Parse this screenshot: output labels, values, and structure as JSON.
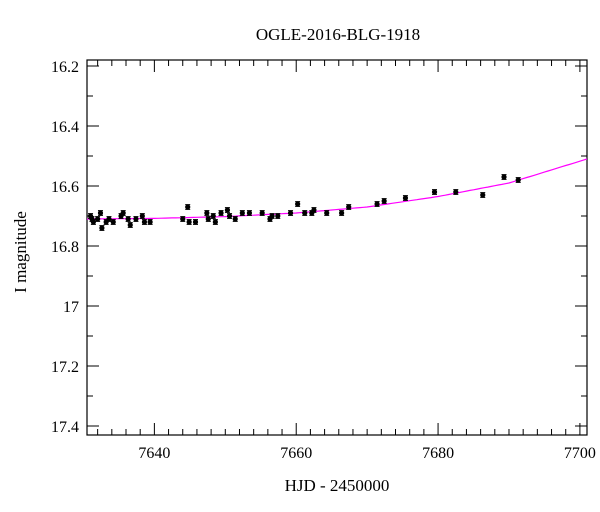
{
  "chart_data": {
    "type": "scatter",
    "title": "OGLE-2016-BLG-1918",
    "xlabel": "HJD - 2450000",
    "ylabel": "I magnitude",
    "xlim": [
      7630.5,
      7701
    ],
    "ylim": [
      17.43,
      16.18
    ],
    "y_inverted": true,
    "x_ticks": [
      7640,
      7660,
      7680,
      7700
    ],
    "x_tick_labels": [
      "7640",
      "7660",
      "7680",
      "7700"
    ],
    "y_ticks": [
      16.2,
      16.4,
      16.6,
      16.8,
      17,
      17.2,
      17.4
    ],
    "y_tick_labels": [
      "16.2",
      "16.4",
      "16.6",
      "16.8",
      "17",
      "17.2",
      "17.4"
    ],
    "grid": false,
    "colors": {
      "points": "#000000",
      "model": "#ff00ff",
      "axes": "#000000"
    },
    "series": [
      {
        "kind": "points",
        "x": [
          7631.0,
          7631.2,
          7631.4,
          7632.0,
          7632.4,
          7632.6,
          7633.2,
          7633.6,
          7634.2,
          7635.3,
          7635.6,
          7636.3,
          7636.6,
          7637.4,
          7638.3,
          7638.6,
          7639.4,
          7644.0,
          7644.7,
          7644.9,
          7645.8,
          7647.4,
          7647.6,
          7648.3,
          7648.6,
          7649.4,
          7650.3,
          7650.6,
          7651.4,
          7652.4,
          7653.4,
          7655.2,
          7656.3,
          7656.6,
          7657.4,
          7659.2,
          7660.2,
          7661.2,
          7662.2,
          7662.5,
          7664.3,
          7666.4,
          7667.4,
          7671.4,
          7672.4,
          7675.4,
          7679.5,
          7682.5,
          7686.3,
          7689.3,
          7691.3
        ],
        "y": [
          16.7,
          16.71,
          16.72,
          16.71,
          16.69,
          16.74,
          16.72,
          16.71,
          16.72,
          16.7,
          16.69,
          16.71,
          16.73,
          16.71,
          16.7,
          16.72,
          16.72,
          16.71,
          16.67,
          16.72,
          16.72,
          16.69,
          16.71,
          16.7,
          16.72,
          16.69,
          16.68,
          16.7,
          16.71,
          16.69,
          16.69,
          16.69,
          16.71,
          16.7,
          16.7,
          16.69,
          16.66,
          16.69,
          16.69,
          16.68,
          16.69,
          16.69,
          16.67,
          16.66,
          16.65,
          16.64,
          16.62,
          16.62,
          16.63,
          16.57,
          16.58
        ],
        "err": [
          0.008,
          0.008,
          0.008,
          0.008,
          0.008,
          0.008,
          0.008,
          0.008,
          0.008,
          0.008,
          0.008,
          0.008,
          0.008,
          0.008,
          0.008,
          0.008,
          0.008,
          0.008,
          0.008,
          0.008,
          0.008,
          0.008,
          0.008,
          0.008,
          0.008,
          0.008,
          0.008,
          0.008,
          0.008,
          0.008,
          0.008,
          0.008,
          0.008,
          0.008,
          0.008,
          0.008,
          0.008,
          0.008,
          0.008,
          0.008,
          0.008,
          0.008,
          0.008,
          0.008,
          0.008,
          0.008,
          0.008,
          0.008,
          0.008,
          0.008,
          0.008
        ]
      },
      {
        "kind": "model-line",
        "x": [
          7630.5,
          7640,
          7650,
          7660,
          7670,
          7680,
          7690,
          7701
        ],
        "y": [
          16.71,
          16.708,
          16.702,
          16.69,
          16.67,
          16.635,
          16.59,
          16.51
        ]
      }
    ]
  }
}
